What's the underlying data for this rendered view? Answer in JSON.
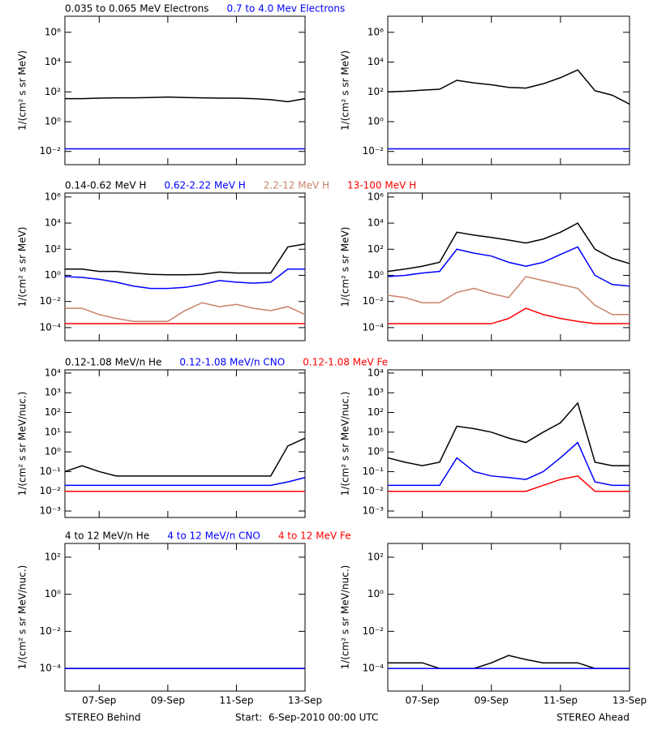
{
  "chart_data": [
    {
      "type": "line",
      "position": "left",
      "ylabel": "1/(cm² s sr MeV)",
      "log_y": true,
      "xlim": [
        6,
        13
      ],
      "xticks": [
        7,
        9,
        11,
        13
      ],
      "ylim": [
        0.0013,
        12000000
      ],
      "yticks": [
        {
          "value": 1000000,
          "label": "10⁶"
        },
        {
          "value": 10000,
          "label": "10⁴"
        },
        {
          "value": 100,
          "label": "10²"
        },
        {
          "value": 1,
          "label": "10⁰"
        },
        {
          "value": 0.01,
          "label": "10⁻²"
        }
      ],
      "x": [
        6,
        6.5,
        7,
        7.5,
        8,
        8.5,
        9,
        9.5,
        10,
        10.5,
        11,
        11.5,
        12,
        12.5,
        13
      ],
      "series": [
        {
          "name": "0.035 to 0.065 MeV Electrons",
          "color": "#000000",
          "values": [
            35,
            35,
            38,
            40,
            40,
            42,
            45,
            42,
            40,
            38,
            38,
            35,
            30,
            22,
            35
          ]
        },
        {
          "name": "0.7 to 4.0 Mev Electrons",
          "color": "#0000ff",
          "values": [
            0.015,
            0.015,
            0.015,
            0.015,
            0.015,
            0.015,
            0.015,
            0.015,
            0.015,
            0.015,
            0.015,
            0.015,
            0.015,
            0.015,
            0.015
          ]
        }
      ]
    },
    {
      "type": "line",
      "position": "right",
      "ylabel": "1/(cm² s sr MeV)",
      "log_y": true,
      "xlim": [
        6,
        13
      ],
      "xticks": [
        7,
        9,
        11,
        13
      ],
      "ylim": [
        0.0013,
        12000000
      ],
      "yticks": [
        {
          "value": 1000000,
          "label": "10⁶"
        },
        {
          "value": 10000,
          "label": "10⁴"
        },
        {
          "value": 100,
          "label": "10²"
        },
        {
          "value": 1,
          "label": "10⁰"
        },
        {
          "value": 0.01,
          "label": "10⁻²"
        }
      ],
      "x": [
        6,
        6.5,
        7,
        7.5,
        8,
        8.5,
        9,
        9.5,
        10,
        10.5,
        11,
        11.5,
        12,
        12.5,
        13
      ],
      "series": [
        {
          "color": "#000000",
          "values": [
            100,
            110,
            130,
            150,
            600,
            400,
            300,
            200,
            180,
            350,
            900,
            3000,
            120,
            60,
            15
          ]
        },
        {
          "color": "#0000ff",
          "values": [
            0.015,
            0.015,
            0.015,
            0.015,
            0.015,
            0.015,
            0.015,
            0.015,
            0.015,
            0.015,
            0.015,
            0.015,
            0.015,
            0.015,
            0.015
          ]
        }
      ]
    },
    {
      "type": "line",
      "position": "left",
      "ylabel": "1/(cm² s sr MeV)",
      "log_y": true,
      "xlim": [
        6,
        13
      ],
      "xticks": [
        7,
        9,
        11,
        13
      ],
      "ylim": [
        1e-05,
        2000000
      ],
      "yticks": [
        {
          "value": 1000000,
          "label": "10⁶"
        },
        {
          "value": 10000,
          "label": "10⁴"
        },
        {
          "value": 100,
          "label": "10²"
        },
        {
          "value": 1,
          "label": "10⁰"
        },
        {
          "value": 0.01,
          "label": "10⁻²"
        },
        {
          "value": 0.0001,
          "label": "10⁻⁴"
        }
      ],
      "x": [
        6,
        6.5,
        7,
        7.5,
        8,
        8.5,
        9,
        9.5,
        10,
        10.5,
        11,
        11.5,
        12,
        12.5,
        13
      ],
      "series": [
        {
          "name": "0.14-0.62 MeV H",
          "color": "#000000",
          "values": [
            3,
            3,
            2,
            2,
            1.5,
            1.2,
            1.1,
            1.1,
            1.2,
            1.8,
            1.5,
            1.5,
            1.5,
            150,
            250
          ]
        },
        {
          "name": "0.62-2.22 MeV H",
          "color": "#0000ff",
          "values": [
            0.8,
            0.7,
            0.5,
            0.3,
            0.15,
            0.1,
            0.1,
            0.12,
            0.2,
            0.4,
            0.3,
            0.25,
            0.3,
            3,
            3
          ]
        },
        {
          "name": "2.2-12 MeV H",
          "color": "#c8826a",
          "values": [
            0.003,
            0.003,
            0.001,
            0.0005,
            0.0003,
            0.0003,
            0.0003,
            0.002,
            0.008,
            0.004,
            0.006,
            0.003,
            0.002,
            0.004,
            0.001
          ]
        },
        {
          "name": "13-100 MeV H",
          "color": "#ff0000",
          "values": [
            0.0002,
            0.0002,
            0.0002,
            0.0002,
            0.0002,
            0.0002,
            0.0002,
            0.0002,
            0.0002,
            0.0002,
            0.0002,
            0.0002,
            0.0002,
            0.0002,
            0.0002
          ]
        }
      ]
    },
    {
      "type": "line",
      "position": "right",
      "ylabel": "1/(cm² s sr MeV)",
      "log_y": true,
      "xlim": [
        6,
        13
      ],
      "xticks": [
        7,
        9,
        11,
        13
      ],
      "ylim": [
        1e-05,
        2000000
      ],
      "yticks": [
        {
          "value": 1000000,
          "label": "10⁶"
        },
        {
          "value": 10000,
          "label": "10⁴"
        },
        {
          "value": 100,
          "label": "10²"
        },
        {
          "value": 1,
          "label": "10⁰"
        },
        {
          "value": 0.01,
          "label": "10⁻²"
        },
        {
          "value": 0.0001,
          "label": "10⁻⁴"
        }
      ],
      "x": [
        6,
        6.5,
        7,
        7.5,
        8,
        8.5,
        9,
        9.5,
        10,
        10.5,
        11,
        11.5,
        12,
        12.5,
        13
      ],
      "series": [
        {
          "color": "#000000",
          "values": [
            2,
            3,
            5,
            10,
            2000,
            1200,
            800,
            500,
            300,
            600,
            2000,
            10000,
            100,
            20,
            8
          ]
        },
        {
          "color": "#0000ff",
          "values": [
            0.8,
            1,
            1.5,
            2,
            100,
            50,
            30,
            10,
            5,
            10,
            40,
            150,
            1,
            0.2,
            0.15
          ]
        },
        {
          "color": "#c8826a",
          "values": [
            0.03,
            0.02,
            0.008,
            0.008,
            0.05,
            0.1,
            0.04,
            0.02,
            0.8,
            0.4,
            0.2,
            0.1,
            0.005,
            0.001,
            0.001
          ]
        },
        {
          "color": "#ff0000",
          "values": [
            0.0002,
            0.0002,
            0.0002,
            0.0002,
            0.0002,
            0.0002,
            0.0002,
            0.0005,
            0.003,
            0.001,
            0.0005,
            0.0003,
            0.0002,
            0.0002,
            0.0002
          ]
        }
      ]
    },
    {
      "type": "line",
      "position": "left",
      "ylabel": "1/(cm² s sr MeV/nuc.)",
      "log_y": true,
      "xlim": [
        6,
        13
      ],
      "xticks": [
        7,
        9,
        11,
        13
      ],
      "ylim": [
        0.00047,
        14500
      ],
      "yticks": [
        {
          "value": 10000,
          "label": "10⁴"
        },
        {
          "value": 1000,
          "label": "10³"
        },
        {
          "value": 100,
          "label": "10²"
        },
        {
          "value": 10,
          "label": "10¹"
        },
        {
          "value": 1,
          "label": "10⁰"
        },
        {
          "value": 0.1,
          "label": "10⁻¹"
        },
        {
          "value": 0.01,
          "label": "10⁻²"
        },
        {
          "value": 0.001,
          "label": "10⁻³"
        }
      ],
      "x": [
        6,
        6.5,
        7,
        7.5,
        8,
        8.5,
        9,
        9.5,
        10,
        10.5,
        11,
        11.5,
        12,
        12.5,
        13
      ],
      "series": [
        {
          "name": "0.12-1.08 MeV/n He",
          "color": "#000000",
          "values": [
            0.1,
            0.2,
            0.1,
            0.06,
            0.06,
            0.06,
            0.06,
            0.06,
            0.06,
            0.06,
            0.06,
            0.06,
            0.06,
            2,
            5
          ]
        },
        {
          "name": "0.12-1.08 MeV/n CNO",
          "color": "#0000ff",
          "values": [
            0.02,
            0.02,
            0.02,
            0.02,
            0.02,
            0.02,
            0.02,
            0.02,
            0.02,
            0.02,
            0.02,
            0.02,
            0.02,
            0.03,
            0.05
          ]
        },
        {
          "name": "0.12-1.08 MeV Fe",
          "color": "#ff0000",
          "values": [
            0.01,
            0.01,
            0.01,
            0.01,
            0.01,
            0.01,
            0.01,
            0.01,
            0.01,
            0.01,
            0.01,
            0.01,
            0.01,
            0.01,
            0.01
          ]
        }
      ]
    },
    {
      "type": "line",
      "position": "right",
      "ylabel": "1/(cm² s sr MeV/nuc.)",
      "log_y": true,
      "xlim": [
        6,
        13
      ],
      "xticks": [
        7,
        9,
        11,
        13
      ],
      "ylim": [
        0.00047,
        14500
      ],
      "yticks": [
        {
          "value": 10000,
          "label": "10⁴"
        },
        {
          "value": 1000,
          "label": "10³"
        },
        {
          "value": 100,
          "label": "10²"
        },
        {
          "value": 10,
          "label": "10¹"
        },
        {
          "value": 1,
          "label": "10⁰"
        },
        {
          "value": 0.1,
          "label": "10⁻¹"
        },
        {
          "value": 0.01,
          "label": "10⁻²"
        },
        {
          "value": 0.001,
          "label": "10⁻³"
        }
      ],
      "x": [
        6,
        6.5,
        7,
        7.5,
        8,
        8.5,
        9,
        9.5,
        10,
        10.5,
        11,
        11.5,
        12,
        12.5,
        13
      ],
      "series": [
        {
          "color": "#000000",
          "values": [
            0.5,
            0.3,
            0.2,
            0.3,
            20,
            15,
            10,
            5,
            3,
            10,
            30,
            300,
            0.3,
            0.2,
            0.2
          ]
        },
        {
          "color": "#0000ff",
          "values": [
            0.02,
            0.02,
            0.02,
            0.02,
            0.5,
            0.1,
            0.06,
            0.05,
            0.04,
            0.1,
            0.5,
            3,
            0.03,
            0.02,
            0.02
          ]
        },
        {
          "color": "#ff0000",
          "values": [
            0.01,
            0.01,
            0.01,
            0.01,
            0.01,
            0.01,
            0.01,
            0.01,
            0.01,
            0.02,
            0.04,
            0.06,
            0.01,
            0.01,
            0.01
          ]
        }
      ]
    },
    {
      "type": "line",
      "position": "left",
      "ylabel": "1/(cm² s sr MeV/nuc.)",
      "log_y": true,
      "xlim": [
        6,
        13
      ],
      "ylim": [
        6e-06,
        550
      ],
      "xticks": [
        {
          "value": 7,
          "label": "07-Sep"
        },
        {
          "value": 9,
          "label": "09-Sep"
        },
        {
          "value": 11,
          "label": "11-Sep"
        },
        {
          "value": 13,
          "label": "13-Sep"
        }
      ],
      "yticks": [
        {
          "value": 100,
          "label": "10²"
        },
        {
          "value": 1,
          "label": "10⁰"
        },
        {
          "value": 0.01,
          "label": "10⁻²"
        },
        {
          "value": 0.0001,
          "label": "10⁻⁴"
        }
      ],
      "x": [
        6,
        6.5,
        7,
        7.5,
        8,
        8.5,
        9,
        9.5,
        10,
        10.5,
        11,
        11.5,
        12,
        12.5,
        13
      ],
      "series": [
        {
          "name": "4 to 12 MeV/n He",
          "color": "#000000",
          "values": [
            0.0001,
            0.0001,
            0.0001,
            0.0001,
            0.0001,
            0.0001,
            0.0001,
            0.0001,
            0.0001,
            0.0001,
            0.0001,
            0.0001,
            0.0001,
            0.0001,
            0.0001
          ]
        },
        {
          "name": "4 to 12 MeV/n CNO",
          "color": "#0000ff",
          "values": [
            0.0001,
            0.0001,
            0.0001,
            0.0001,
            0.0001,
            0.0001,
            0.0001,
            0.0001,
            0.0001,
            0.0001,
            0.0001,
            0.0001,
            0.0001,
            0.0001,
            0.0001
          ]
        },
        {
          "name": "4 to 12 MeV Fe",
          "color": "#ff0000",
          "values": [
            null,
            null,
            null,
            null,
            null,
            null,
            null,
            null,
            null,
            null,
            null,
            null,
            null,
            null,
            null
          ]
        }
      ]
    },
    {
      "type": "line",
      "position": "right",
      "ylabel": "1/(cm² s sr MeV/nuc.)",
      "log_y": true,
      "xlim": [
        6,
        13
      ],
      "ylim": [
        6e-06,
        550
      ],
      "xticks": [
        {
          "value": 7,
          "label": "07-Sep"
        },
        {
          "value": 9,
          "label": "09-Sep"
        },
        {
          "value": 11,
          "label": "11-Sep"
        },
        {
          "value": 13,
          "label": "13-Sep"
        }
      ],
      "yticks": [
        {
          "value": 100,
          "label": "10²"
        },
        {
          "value": 1,
          "label": "10⁰"
        },
        {
          "value": 0.01,
          "label": "10⁻²"
        },
        {
          "value": 0.0001,
          "label": "10⁻⁴"
        }
      ],
      "x": [
        6,
        6.5,
        7,
        7.5,
        8,
        8.5,
        9,
        9.5,
        10,
        10.5,
        11,
        11.5,
        12,
        12.5,
        13
      ],
      "series": [
        {
          "color": "#000000",
          "values": [
            0.0002,
            0.0002,
            0.0002,
            0.0001,
            0.0001,
            0.0001,
            0.0002,
            0.0005,
            0.0003,
            0.0002,
            0.0002,
            0.0002,
            0.0001,
            0.0001,
            0.0001
          ]
        },
        {
          "color": "#0000ff",
          "values": [
            0.0001,
            0.0001,
            0.0001,
            0.0001,
            0.0001,
            0.0001,
            0.0001,
            0.0001,
            0.0001,
            0.0001,
            0.0001,
            0.0001,
            0.0001,
            0.0001,
            0.0001
          ]
        },
        {
          "color": "#ff0000",
          "values": [
            null,
            null,
            null,
            null,
            null,
            null,
            null,
            null,
            null,
            null,
            null,
            null,
            null,
            null,
            null
          ]
        }
      ]
    }
  ],
  "footer": {
    "left": "STEREO Behind",
    "center": "Start:  6-Sep-2010 00:00 UTC",
    "right": "STEREO Ahead"
  }
}
